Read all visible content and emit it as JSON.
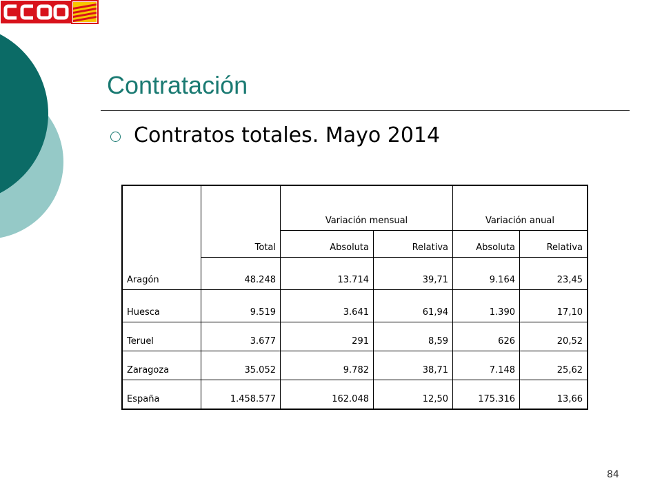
{
  "logo": {
    "text": "CCOO"
  },
  "slide": {
    "title": "Contratación",
    "bullet": "Contratos totales. Mayo 2014",
    "page_number": "84"
  },
  "table": {
    "headers": {
      "total": "Total",
      "mensual": "Variación mensual",
      "anual": "Variación anual",
      "absoluta": "Absoluta",
      "relativa": "Relativa"
    },
    "rows": [
      {
        "region": "Aragón",
        "total": "48.248",
        "mens_abs": "13.714",
        "mens_rel": "39,71",
        "anual_abs": "9.164",
        "anual_rel": "23,45"
      },
      {
        "region": "Huesca",
        "total": "9.519",
        "mens_abs": "3.641",
        "mens_rel": "61,94",
        "anual_abs": "1.390",
        "anual_rel": "17,10"
      },
      {
        "region": "Teruel",
        "total": "3.677",
        "mens_abs": "291",
        "mens_rel": "8,59",
        "anual_abs": "626",
        "anual_rel": "20,52"
      },
      {
        "region": "Zaragoza",
        "total": "35.052",
        "mens_abs": "9.782",
        "mens_rel": "38,71",
        "anual_abs": "7.148",
        "anual_rel": "25,62"
      },
      {
        "region": "España",
        "total": "1.458.577",
        "mens_abs": "162.048",
        "mens_rel": "12,50",
        "anual_abs": "175.316",
        "anual_rel": "13,66"
      }
    ]
  },
  "colors": {
    "accent_dark": "#0b6b66",
    "accent_light": "#95c9c7",
    "title": "#1a7a72",
    "logo_red": "#d8121b",
    "logo_stripe_yellow": "#f7c600"
  }
}
